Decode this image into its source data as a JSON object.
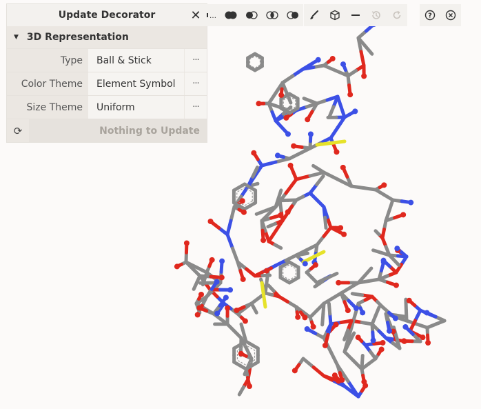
{
  "panel": {
    "title": "Update Decorator",
    "section_title": "3D Representation",
    "rows": [
      {
        "label": "Type",
        "value": "Ball & Stick"
      },
      {
        "label": "Color Theme",
        "value": "Element Symbol"
      },
      {
        "label": "Size Theme",
        "value": "Uniform"
      }
    ],
    "more_label": "···",
    "update_label": "Nothing to Update"
  },
  "toolbar": {
    "close_glyph": "✕",
    "ellipsis_glyph": "…",
    "glyphs": {
      "brush": "🖌",
      "cube": "⬡",
      "minus": "—",
      "history": "⟲",
      "redo": "↻",
      "help": "?",
      "exit": "⊗",
      "refresh": "⟳"
    }
  },
  "colors": {
    "carbon": "#8a8a8a",
    "oxygen": "#e0281e",
    "nitrogen": "#3c50e6",
    "sulfur": "#e6e22a",
    "background": "#fcfaf9"
  }
}
